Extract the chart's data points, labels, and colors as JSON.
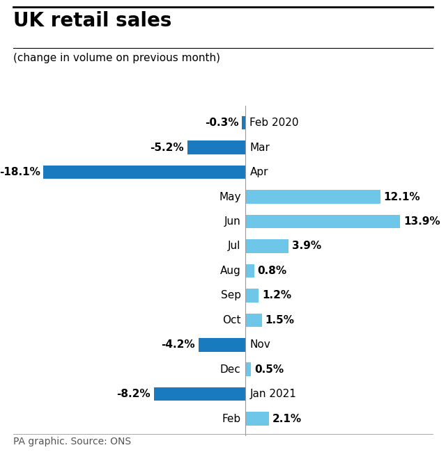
{
  "title": "UK retail sales",
  "subtitle": "(change in volume on previous month)",
  "footer": "PA graphic. Source: ONS",
  "months": [
    "Feb 2020",
    "Mar",
    "Apr",
    "May",
    "Jun",
    "Jul",
    "Aug",
    "Sep",
    "Oct",
    "Nov",
    "Dec",
    "Jan 2021",
    "Feb"
  ],
  "values": [
    -0.3,
    -5.2,
    -18.1,
    12.1,
    13.9,
    3.9,
    0.8,
    1.2,
    1.5,
    -4.2,
    0.5,
    -8.2,
    2.1
  ],
  "color_negative": "#1a7abf",
  "color_positive": "#6ec6e8",
  "background": "#ffffff",
  "title_fontsize": 20,
  "subtitle_fontsize": 11,
  "label_fontsize": 11,
  "bar_label_fontsize": 11,
  "footer_fontsize": 10,
  "xlim": [
    -22,
    18
  ]
}
